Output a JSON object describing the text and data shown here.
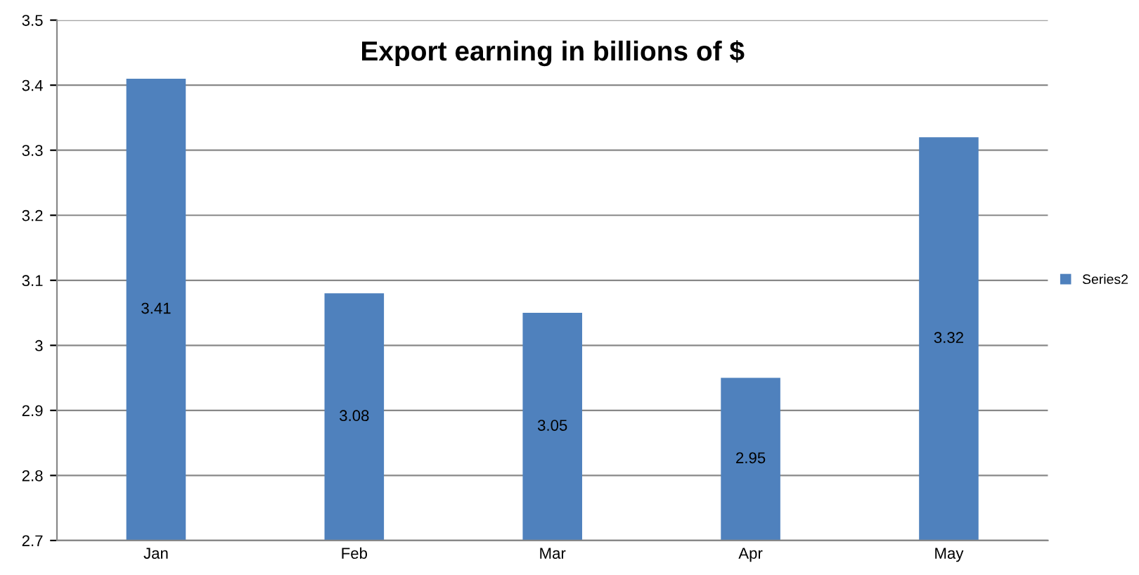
{
  "chart_data": {
    "type": "bar",
    "title": "Export earning in billions of $",
    "categories": [
      "Jan",
      "Feb",
      "Mar",
      "Apr",
      "May"
    ],
    "series": [
      {
        "name": "Series2",
        "color": "#4f81bd",
        "values": [
          3.41,
          3.08,
          3.05,
          2.95,
          3.32
        ]
      }
    ],
    "ylim": [
      2.7,
      3.5
    ],
    "yticks": [
      2.7,
      2.8,
      2.9,
      3,
      3.1,
      3.2,
      3.3,
      3.4,
      3.5
    ],
    "grid": "y",
    "legend": "right",
    "data_labels": true
  }
}
